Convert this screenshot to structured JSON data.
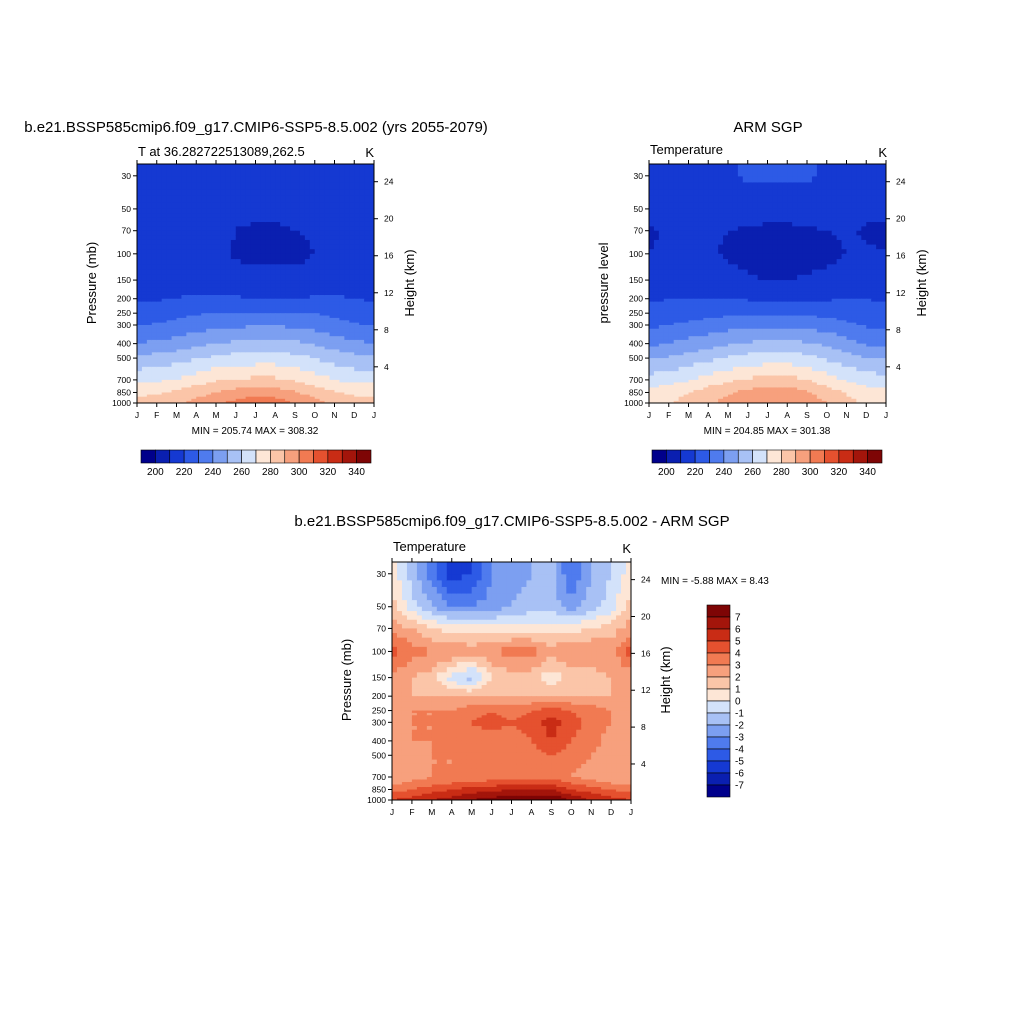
{
  "colors": {
    "temp_scale": [
      "#00008b",
      "#0a1fb0",
      "#1539d2",
      "#2d5ae6",
      "#4f7bee",
      "#7c9ff1",
      "#a8c1f5",
      "#d3e2fa",
      "#fde6d6",
      "#fbc5a8",
      "#f7a07d",
      "#f17a52",
      "#e5512f",
      "#c92c15",
      "#a3150b",
      "#7e0505"
    ],
    "diff_scale": [
      "#00008b",
      "#0a1fb0",
      "#1539d2",
      "#2d5ae6",
      "#4f7bee",
      "#7c9ff1",
      "#a8c1f5",
      "#d3e2fa",
      "#fde6d6",
      "#fbc5a8",
      "#f7a07d",
      "#f17a52",
      "#e5512f",
      "#c92c15",
      "#a3150b",
      "#7e0505"
    ]
  },
  "panels": {
    "model": {
      "title": "b.e21.BSSP585cmip6.f09_g17.CMIP6-SSP5-8.5.002 (yrs 2055-2079)",
      "left_label": "T at 36.282722513089,262.5",
      "units": "K",
      "ylabel": "Pressure (mb)",
      "ylabel_right": "Height (km)",
      "stats": "MIN = 205.74 MAX = 308.32"
    },
    "obs": {
      "title": "ARM SGP",
      "left_label": "Temperature",
      "units": "K",
      "ylabel": "pressure level",
      "ylabel_right": "Height (km)",
      "stats": "MIN = 204.85 MAX = 301.38"
    },
    "diff": {
      "title": "b.e21.BSSP585cmip6.f09_g17.CMIP6-SSP5-8.5.002 - ARM SGP",
      "left_label": "Temperature",
      "units": "K",
      "ylabel": "Pressure (mb)",
      "ylabel_right": "Height (km)",
      "stats": "MIN =  -5.88 MAX =   8.43"
    }
  },
  "chart_data": [
    {
      "type": "heatmap",
      "id": "model",
      "title": "b.e21.BSSP585cmip6.f09_g17.CMIP6-SSP5-8.5.002 (yrs 2055-2079)",
      "x": [
        "J",
        "F",
        "M",
        "A",
        "M",
        "J",
        "J",
        "A",
        "S",
        "O",
        "N",
        "D",
        "J"
      ],
      "y_pressure_mb": [
        30,
        50,
        70,
        100,
        150,
        200,
        250,
        300,
        400,
        500,
        700,
        850,
        1000
      ],
      "y_height_km": [
        24,
        20,
        16,
        12,
        8,
        4
      ],
      "xlabel": "",
      "ylabel": "Pressure (mb)",
      "y2label": "Height (km)",
      "zmin": 205.74,
      "zmax": 308.32,
      "levels": [
        200,
        210,
        220,
        230,
        240,
        250,
        260,
        270,
        280,
        290,
        300,
        310,
        320,
        330,
        340
      ],
      "colorbar_labels": [
        "200",
        "220",
        "240",
        "260",
        "280",
        "300",
        "320",
        "340"
      ],
      "z": [
        [
          218,
          218,
          218,
          218,
          218,
          218,
          218,
          218,
          218,
          218,
          218,
          218,
          218
        ],
        [
          214,
          212,
          212,
          211,
          211,
          211,
          212,
          212,
          212,
          212,
          212,
          210,
          214
        ],
        [
          216,
          215,
          215,
          214,
          212,
          210,
          209,
          209,
          210,
          211,
          213,
          214,
          216
        ],
        [
          217,
          216,
          216,
          215,
          213,
          209,
          208,
          208,
          208,
          210,
          213,
          215,
          217
        ],
        [
          218,
          217,
          217,
          216,
          215,
          213,
          212,
          212,
          212,
          213,
          215,
          216,
          218
        ],
        [
          219,
          219,
          220,
          221,
          221,
          221,
          220,
          220,
          220,
          221,
          221,
          220,
          219
        ],
        [
          223,
          225,
          227,
          229,
          230,
          230,
          230,
          230,
          230,
          230,
          228,
          226,
          223
        ],
        [
          229,
          231,
          233,
          235,
          237,
          238,
          239,
          239,
          238,
          236,
          233,
          231,
          229
        ],
        [
          240,
          242,
          244,
          247,
          250,
          252,
          253,
          253,
          252,
          249,
          245,
          242,
          240
        ],
        [
          252,
          254,
          256,
          259,
          262,
          264,
          265,
          265,
          263,
          260,
          256,
          253,
          252
        ],
        [
          267,
          268,
          271,
          275,
          279,
          281,
          282,
          282,
          279,
          275,
          270,
          267,
          267
        ],
        [
          278,
          279,
          282,
          286,
          290,
          294,
          296,
          295,
          291,
          286,
          281,
          278,
          278
        ],
        [
          283,
          285,
          288,
          293,
          298,
          303,
          306,
          305,
          300,
          294,
          287,
          284,
          283
        ]
      ]
    },
    {
      "type": "heatmap",
      "id": "obs",
      "title": "ARM SGP",
      "x": [
        "J",
        "F",
        "M",
        "A",
        "M",
        "J",
        "J",
        "A",
        "S",
        "O",
        "N",
        "D",
        "J"
      ],
      "y_pressure_mb": [
        30,
        50,
        70,
        100,
        150,
        200,
        250,
        300,
        400,
        500,
        700,
        850,
        1000
      ],
      "y_height_km": [
        24,
        20,
        16,
        12,
        8,
        4
      ],
      "xlabel": "",
      "ylabel": "pressure level",
      "y2label": "Height (km)",
      "zmin": 204.85,
      "zmax": 301.38,
      "levels": [
        200,
        210,
        220,
        230,
        240,
        250,
        260,
        270,
        280,
        290,
        300,
        310,
        320,
        330,
        340
      ],
      "colorbar_labels": [
        "200",
        "220",
        "240",
        "260",
        "280",
        "300",
        "320",
        "340"
      ],
      "z": [
        [
          218,
          218,
          218,
          218,
          219,
          221,
          222,
          222,
          221,
          219,
          218,
          218,
          218
        ],
        [
          212,
          213,
          214,
          214,
          214,
          214,
          214,
          214,
          214,
          214,
          213,
          212,
          212
        ],
        [
          209,
          211,
          212,
          211,
          210,
          209,
          208,
          208,
          209,
          210,
          211,
          209,
          209
        ],
        [
          210,
          211,
          211,
          211,
          209,
          207,
          206,
          206,
          207,
          208,
          210,
          211,
          210
        ],
        [
          214,
          215,
          215,
          214,
          213,
          211,
          210,
          210,
          211,
          212,
          214,
          215,
          214
        ],
        [
          219,
          220,
          220,
          220,
          220,
          219,
          218,
          218,
          218,
          219,
          220,
          220,
          219
        ],
        [
          222,
          224,
          225,
          227,
          228,
          229,
          229,
          229,
          228,
          227,
          225,
          223,
          222
        ],
        [
          228,
          230,
          232,
          234,
          236,
          237,
          238,
          238,
          237,
          235,
          232,
          229,
          228
        ],
        [
          238,
          240,
          243,
          246,
          249,
          251,
          253,
          253,
          251,
          248,
          243,
          239,
          238
        ],
        [
          249,
          251,
          254,
          258,
          261,
          264,
          265,
          265,
          263,
          259,
          254,
          250,
          249
        ],
        [
          264,
          266,
          269,
          274,
          278,
          281,
          283,
          283,
          280,
          275,
          269,
          265,
          264
        ],
        [
          274,
          276,
          280,
          285,
          289,
          293,
          295,
          295,
          291,
          285,
          279,
          275,
          274
        ],
        [
          277,
          279,
          283,
          288,
          293,
          297,
          300,
          300,
          296,
          290,
          283,
          278,
          277
        ]
      ]
    },
    {
      "type": "heatmap",
      "id": "diff",
      "title": "b.e21.BSSP585cmip6.f09_g17.CMIP6-SSP5-8.5.002 - ARM SGP",
      "x": [
        "J",
        "F",
        "M",
        "A",
        "M",
        "J",
        "J",
        "A",
        "S",
        "O",
        "N",
        "D",
        "J"
      ],
      "y_pressure_mb": [
        30,
        50,
        70,
        100,
        150,
        200,
        250,
        300,
        400,
        500,
        700,
        850,
        1000
      ],
      "y_height_km": [
        24,
        20,
        16,
        12,
        8,
        4
      ],
      "xlabel": "",
      "ylabel": "Pressure (mb)",
      "y2label": "Height (km)",
      "zmin": -5.88,
      "zmax": 8.43,
      "levels": [
        -7,
        -6,
        -5,
        -4,
        -3,
        -2,
        -1,
        0,
        1,
        2,
        3,
        4,
        5,
        6,
        7
      ],
      "colorbar_labels": [
        "7",
        "6",
        "5",
        "4",
        "3",
        "2",
        "1",
        "0",
        "-1",
        "-2",
        "-3",
        "-4",
        "-5",
        "-6",
        "-7"
      ],
      "z": [
        [
          0.5,
          -1.5,
          -3.5,
          -5.5,
          -5.0,
          -3.0,
          -2.5,
          -2.0,
          -1.5,
          -4.0,
          -2.0,
          -1.0,
          0.5
        ],
        [
          1.5,
          -0.5,
          -2.0,
          -3.0,
          -3.0,
          -2.5,
          -2.0,
          -1.5,
          -1.5,
          -2.5,
          -1.5,
          -0.5,
          1.5
        ],
        [
          2.5,
          2.0,
          1.0,
          0.5,
          0.5,
          0.3,
          0.5,
          0.5,
          0.5,
          0.5,
          1.0,
          1.5,
          2.5
        ],
        [
          4.5,
          3.5,
          3.0,
          3.0,
          2.5,
          3.0,
          3.5,
          3.5,
          2.5,
          3.0,
          3.0,
          2.5,
          4.5
        ],
        [
          2.5,
          2.0,
          1.5,
          -0.5,
          -1.5,
          1.0,
          1.5,
          1.5,
          0.2,
          1.5,
          1.5,
          2.0,
          2.5
        ],
        [
          2.0,
          2.0,
          2.0,
          2.0,
          2.0,
          2.0,
          2.0,
          2.0,
          2.0,
          2.0,
          2.0,
          2.0,
          2.0
        ],
        [
          2.5,
          3.0,
          3.0,
          3.0,
          3.5,
          4.0,
          3.5,
          4.0,
          4.5,
          4.0,
          3.5,
          3.0,
          2.5
        ],
        [
          2.5,
          3.0,
          3.0,
          3.5,
          4.0,
          4.5,
          4.0,
          4.5,
          5.5,
          4.5,
          3.5,
          3.0,
          2.5
        ],
        [
          2.5,
          3.0,
          3.0,
          3.5,
          3.5,
          3.5,
          3.5,
          4.0,
          5.0,
          4.0,
          3.5,
          2.5,
          2.5
        ],
        [
          2.0,
          2.5,
          3.0,
          3.0,
          3.5,
          3.5,
          3.5,
          3.5,
          4.0,
          3.5,
          3.0,
          2.5,
          2.0
        ],
        [
          2.0,
          2.5,
          3.0,
          3.0,
          3.0,
          3.5,
          3.5,
          3.5,
          3.5,
          3.0,
          2.5,
          2.0,
          2.0
        ],
        [
          3.5,
          4.0,
          4.5,
          5.0,
          5.5,
          5.5,
          6.0,
          6.0,
          6.0,
          5.0,
          4.5,
          4.0,
          3.5
        ],
        [
          5.0,
          5.5,
          6.0,
          6.5,
          7.0,
          7.5,
          8.0,
          7.5,
          8.0,
          7.0,
          6.0,
          5.5,
          5.0
        ]
      ]
    }
  ]
}
